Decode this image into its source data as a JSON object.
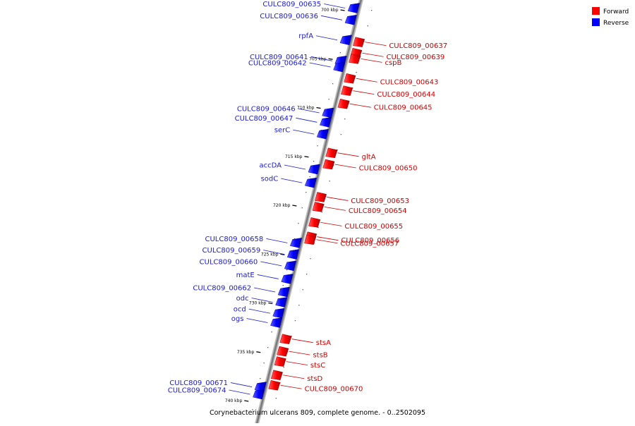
{
  "caption": "Corynebacterium ulcerans 809, complete genome. - 0..2502095",
  "legend": [
    {
      "label": "Forward",
      "color": "#ff0000"
    },
    {
      "label": "Reverse",
      "color": "#0000ff"
    }
  ],
  "colors": {
    "forward": "#ff0000",
    "reverse": "#0000ff",
    "forward_label": "#cc0000",
    "reverse_label": "#1a1acc",
    "backbone": "#808080"
  },
  "ticks": [
    "700 kbp",
    "705 kbp",
    "710 kbp",
    "715 kbp",
    "720 kbp",
    "725 kbp",
    "730 kbp",
    "735 kbp",
    "740 kbp"
  ],
  "genes": [
    {
      "name": "CULC809_00635",
      "strand": "reverse",
      "pos": 0.006
    },
    {
      "name": "CULC809_00636",
      "strand": "reverse",
      "pos": 0.035
    },
    {
      "name": "rpfA",
      "strand": "reverse",
      "pos": 0.084
    },
    {
      "name": "CULC809_00637",
      "strand": "forward",
      "pos": 0.089
    },
    {
      "name": "CULC809_00639",
      "strand": "forward",
      "pos": 0.116
    },
    {
      "name": "CULC809_00641",
      "strand": "reverse",
      "pos": 0.135
    },
    {
      "name": "cspB",
      "strand": "forward",
      "pos": 0.13
    },
    {
      "name": "CULC809_00642",
      "strand": "reverse",
      "pos": 0.15
    },
    {
      "name": "CULC809_00643",
      "strand": "forward",
      "pos": 0.178
    },
    {
      "name": "CULC809_00644",
      "strand": "forward",
      "pos": 0.208
    },
    {
      "name": "CULC809_00645",
      "strand": "forward",
      "pos": 0.24
    },
    {
      "name": "CULC809_00646",
      "strand": "reverse",
      "pos": 0.262
    },
    {
      "name": "CULC809_00647",
      "strand": "reverse",
      "pos": 0.285
    },
    {
      "name": "serC",
      "strand": "reverse",
      "pos": 0.314
    },
    {
      "name": "gltA",
      "strand": "forward",
      "pos": 0.36
    },
    {
      "name": "accDA",
      "strand": "reverse",
      "pos": 0.4
    },
    {
      "name": "CULC809_00650",
      "strand": "forward",
      "pos": 0.388
    },
    {
      "name": "sodC",
      "strand": "reverse",
      "pos": 0.433
    },
    {
      "name": "CULC809_00653",
      "strand": "forward",
      "pos": 0.468
    },
    {
      "name": "CULC809_00654",
      "strand": "forward",
      "pos": 0.492
    },
    {
      "name": "CULC809_00655",
      "strand": "forward",
      "pos": 0.53
    },
    {
      "name": "CULC809_00656",
      "strand": "forward",
      "pos": 0.565
    },
    {
      "name": "CULC809_00658",
      "strand": "reverse",
      "pos": 0.58
    },
    {
      "name": "CULC809_00657",
      "strand": "forward",
      "pos": 0.572
    },
    {
      "name": "CULC809_00659",
      "strand": "reverse",
      "pos": 0.608
    },
    {
      "name": "CULC809_00660",
      "strand": "reverse",
      "pos": 0.636
    },
    {
      "name": "matE",
      "strand": "reverse",
      "pos": 0.668
    },
    {
      "name": "CULC809_00662",
      "strand": "reverse",
      "pos": 0.7
    },
    {
      "name": "odc",
      "strand": "reverse",
      "pos": 0.725
    },
    {
      "name": "ocd",
      "strand": "reverse",
      "pos": 0.752
    },
    {
      "name": "ogs",
      "strand": "reverse",
      "pos": 0.775
    },
    {
      "name": "stsA",
      "strand": "forward",
      "pos": 0.815
    },
    {
      "name": "stsB",
      "strand": "forward",
      "pos": 0.845
    },
    {
      "name": "stsC",
      "strand": "forward",
      "pos": 0.87
    },
    {
      "name": "stsD",
      "strand": "forward",
      "pos": 0.903
    },
    {
      "name": "CULC809_00670",
      "strand": "forward",
      "pos": 0.928
    },
    {
      "name": "CULC809_00671",
      "strand": "reverse",
      "pos": 0.932
    },
    {
      "name": "CULC809_00674",
      "strand": "reverse",
      "pos": 0.95
    }
  ]
}
